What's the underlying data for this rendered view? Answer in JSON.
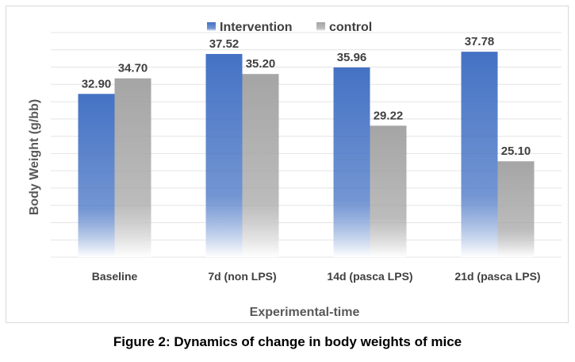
{
  "chart_data": {
    "type": "bar",
    "categories": [
      "Baseline",
      "7d (non LPS)",
      "14d (pasca LPS)",
      "21d (pasca LPS)"
    ],
    "series": [
      {
        "name": "Intervention",
        "values": [
          32.9,
          37.52,
          35.96,
          37.78
        ],
        "color": "#4472c4"
      },
      {
        "name": "control",
        "values": [
          34.7,
          35.2,
          29.22,
          25.1
        ],
        "color": "#a5a5a5"
      }
    ],
    "value_labels": [
      [
        "32.90",
        "37.52",
        "35.96",
        "37.78"
      ],
      [
        "34.70",
        "35.20",
        "29.22",
        "25.10"
      ]
    ],
    "xlabel": "Experimental-time",
    "ylabel": "Body Weight (g/bb)",
    "ylim": [
      14,
      40
    ],
    "y_axis_ticks_shown": false,
    "grid": true,
    "legend_position": "top-center",
    "bar_style": "gradient fading to white at base"
  },
  "caption": "Figure 2: Dynamics of change in body weights of mice"
}
